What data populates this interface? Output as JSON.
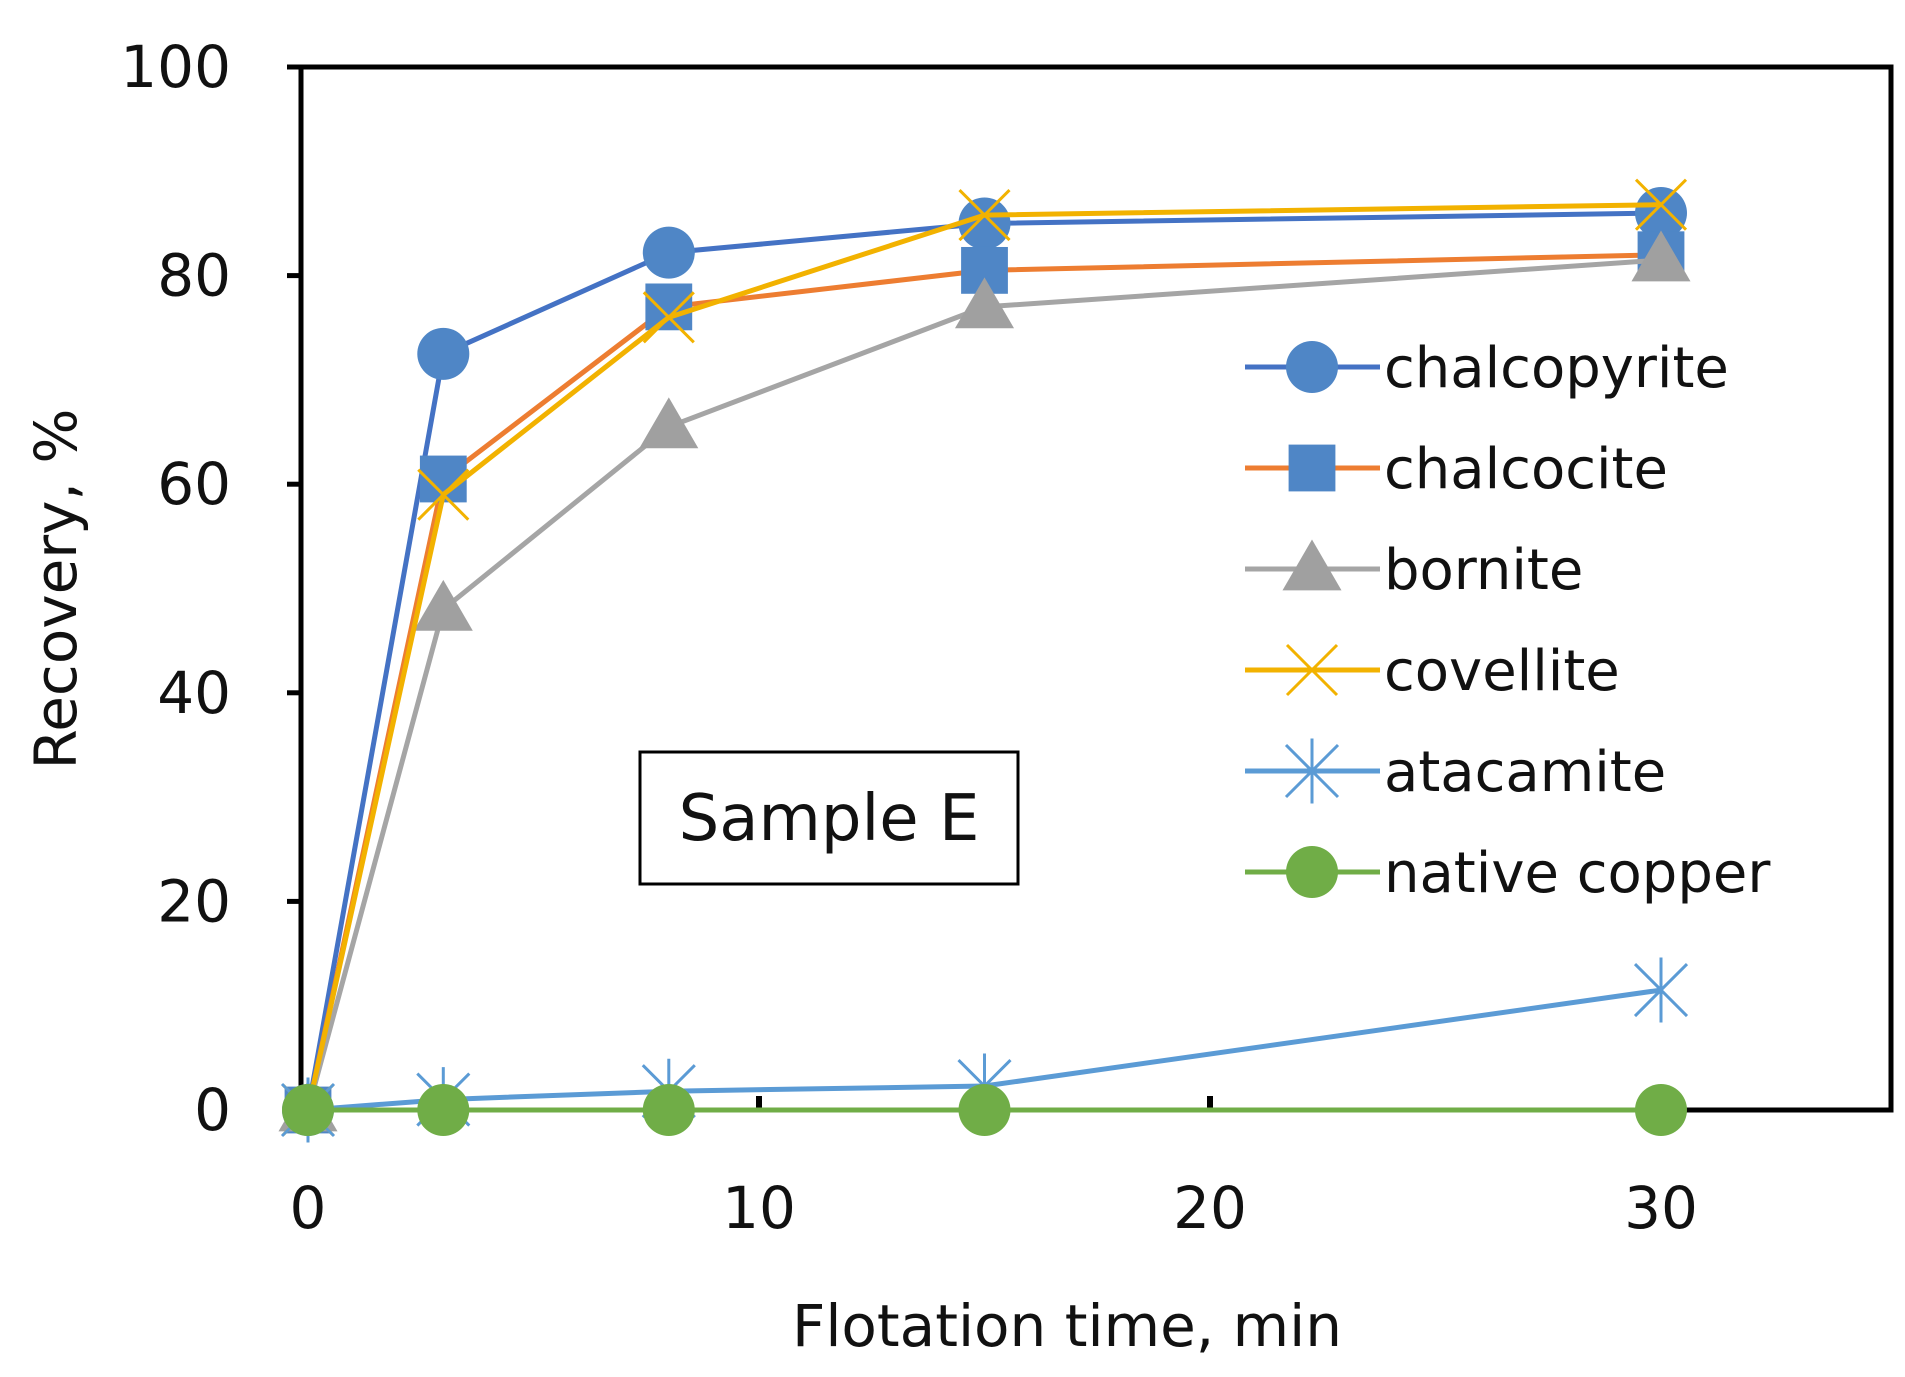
{
  "chart_data": {
    "type": "line",
    "title": "",
    "xlabel": "Flotation time, min",
    "ylabel": "Recovery, %",
    "xlim": [
      0,
      35.5
    ],
    "ylim": [
      0,
      100
    ],
    "xticks": [
      0,
      10,
      20,
      30
    ],
    "yticks": [
      0,
      20,
      40,
      60,
      80,
      100
    ],
    "xtick_labels": [
      "0",
      "10",
      "20",
      "30"
    ],
    "ytick_labels": [
      "0",
      "20",
      "40",
      "60",
      "80",
      "100"
    ],
    "grid": false,
    "legend_position": "right",
    "annotation": "Sample E",
    "series": [
      {
        "name": "chalcopyrite",
        "color": "#4472C4",
        "marker": "circle",
        "marker_color": "#4F86C6",
        "x": [
          0,
          3,
          8,
          15,
          30
        ],
        "y": [
          0,
          72.5,
          82.2,
          85.0,
          86.0
        ]
      },
      {
        "name": "chalcocite",
        "color": "#ED7D31",
        "marker": "square",
        "marker_color": "#4F86C6",
        "x": [
          0,
          3,
          8,
          15,
          30
        ],
        "y": [
          0,
          60.5,
          77.0,
          80.5,
          82.0
        ]
      },
      {
        "name": "bornite",
        "color": "#A5A5A5",
        "marker": "triangle",
        "marker_color": "#A0A0A0",
        "x": [
          0,
          3,
          8,
          15,
          30
        ],
        "y": [
          0,
          48.0,
          65.5,
          77.0,
          81.5
        ]
      },
      {
        "name": "covellite",
        "color": "#F2B200",
        "marker": "x",
        "marker_color": "#F2B200",
        "x": [
          0,
          3,
          8,
          15,
          30
        ],
        "y": [
          0,
          59.0,
          76.0,
          85.8,
          86.8
        ]
      },
      {
        "name": "atacamite",
        "color": "#5B9BD5",
        "marker": "star",
        "marker_color": "#5B9BD5",
        "x": [
          0,
          3,
          8,
          15,
          30
        ],
        "y": [
          0,
          1.0,
          1.8,
          2.3,
          11.5
        ]
      },
      {
        "name": "native copper",
        "color": "#70AD47",
        "marker": "circle",
        "marker_color": "#70AD47",
        "x": [
          0,
          3,
          8,
          15,
          30
        ],
        "y": [
          0,
          0,
          0,
          0,
          0
        ]
      }
    ]
  }
}
